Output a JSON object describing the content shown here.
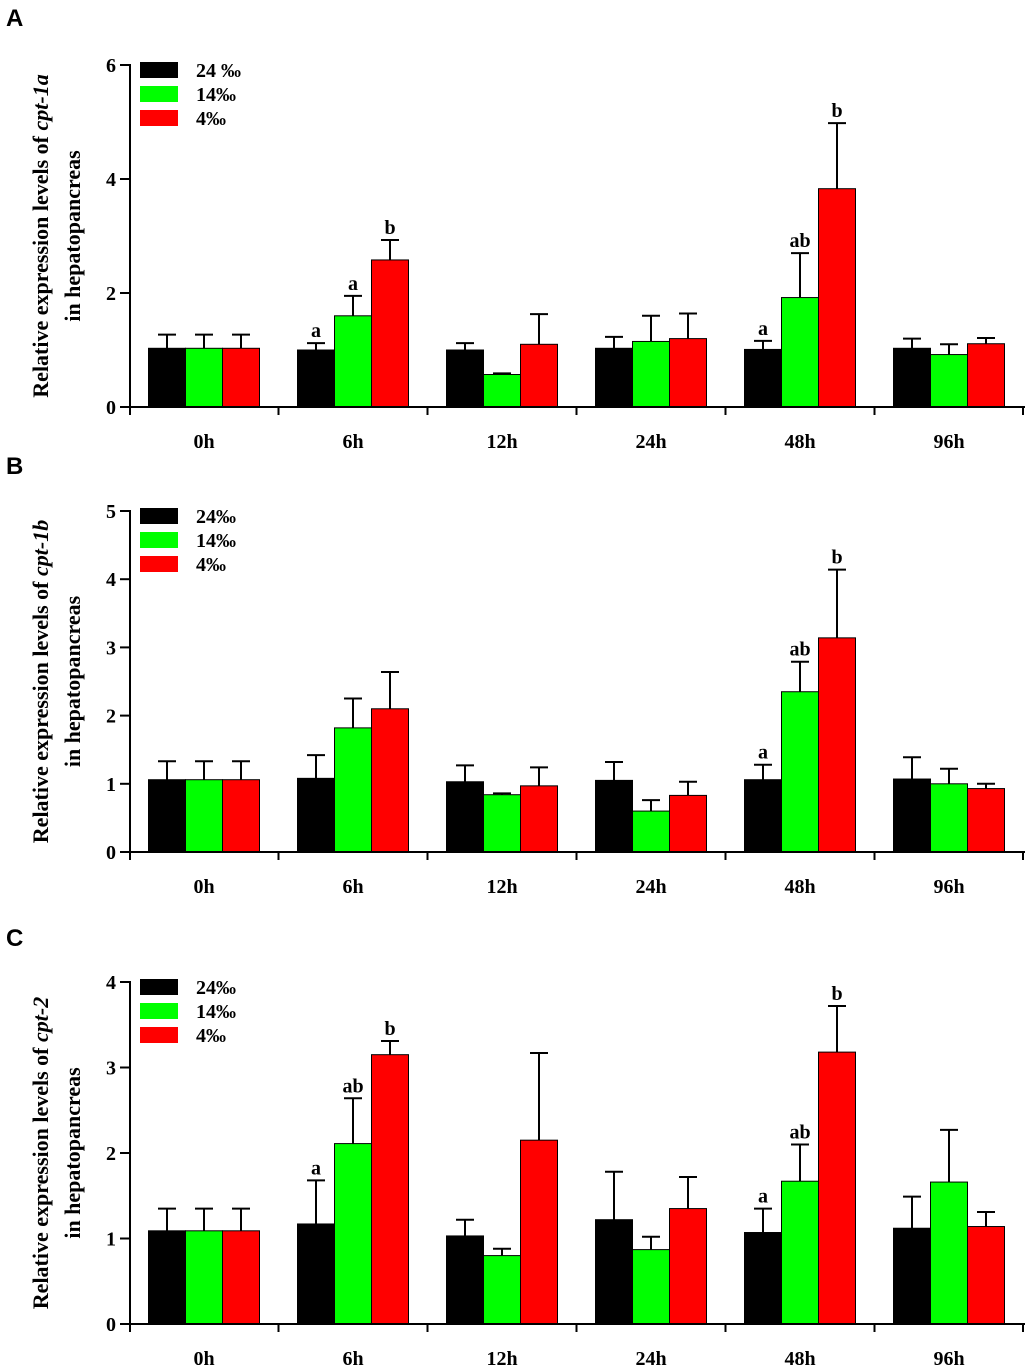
{
  "chart_data": [
    {
      "panel": "A",
      "type": "bar",
      "ylabel_line1_prefix": "Relative expression levels of ",
      "gene": "cpt-1a",
      "ylabel_line2": "in hepatopancreas",
      "ylim": [
        0,
        6
      ],
      "yticks": [
        "0",
        "2",
        "4",
        "6"
      ],
      "categories": [
        "0h",
        "6h",
        "12h",
        "24h",
        "48h",
        "96h"
      ],
      "series": [
        {
          "name": "24 ‰",
          "color": "#000000",
          "values": [
            1.03,
            1.0,
            1.0,
            1.03,
            1.01,
            1.03
          ],
          "errors": [
            0.24,
            0.12,
            0.12,
            0.2,
            0.15,
            0.17
          ],
          "labels": [
            "",
            "a",
            "",
            "",
            "a",
            ""
          ]
        },
        {
          "name": "14‰",
          "color": "#00ff00",
          "values": [
            1.03,
            1.6,
            0.57,
            1.15,
            1.92,
            0.92
          ],
          "errors": [
            0.24,
            0.35,
            0.02,
            0.45,
            0.78,
            0.18
          ],
          "labels": [
            "",
            "a",
            "",
            "",
            "ab",
            ""
          ]
        },
        {
          "name": "4‰",
          "color": "#ff0000",
          "values": [
            1.03,
            2.58,
            1.1,
            1.2,
            3.83,
            1.11
          ],
          "errors": [
            0.24,
            0.35,
            0.53,
            0.44,
            1.15,
            0.1
          ],
          "labels": [
            "",
            "b",
            "",
            "",
            "b",
            ""
          ]
        }
      ]
    },
    {
      "panel": "B",
      "type": "bar",
      "ylabel_line1_prefix": "Relative expression levels of ",
      "gene": "cpt-1b",
      "ylabel_line2": "in hepatopancreas",
      "ylim": [
        0,
        5
      ],
      "yticks": [
        "0",
        "1",
        "2",
        "3",
        "4",
        "5"
      ],
      "categories": [
        "0h",
        "6h",
        "12h",
        "24h",
        "48h",
        "96h"
      ],
      "series": [
        {
          "name": "24‰",
          "color": "#000000",
          "values": [
            1.06,
            1.08,
            1.03,
            1.05,
            1.06,
            1.07
          ],
          "errors": [
            0.27,
            0.34,
            0.24,
            0.27,
            0.22,
            0.32
          ],
          "labels": [
            "",
            "",
            "",
            "",
            "a",
            ""
          ]
        },
        {
          "name": "14‰",
          "color": "#00ff00",
          "values": [
            1.06,
            1.82,
            0.84,
            0.6,
            2.35,
            1.0
          ],
          "errors": [
            0.27,
            0.43,
            0.02,
            0.16,
            0.44,
            0.22
          ],
          "labels": [
            "",
            "",
            "",
            "",
            "ab",
            ""
          ]
        },
        {
          "name": "4‰",
          "color": "#ff0000",
          "values": [
            1.06,
            2.1,
            0.97,
            0.83,
            3.14,
            0.93
          ],
          "errors": [
            0.27,
            0.54,
            0.27,
            0.2,
            1.0,
            0.07
          ],
          "labels": [
            "",
            "",
            "",
            "",
            "b",
            ""
          ]
        }
      ]
    },
    {
      "panel": "C",
      "type": "bar",
      "ylabel_line1_prefix": "Relative expression levels of ",
      "gene": "cpt-2",
      "ylabel_line2": "in hepatopancreas",
      "ylim": [
        0,
        4
      ],
      "yticks": [
        "0",
        "1",
        "2",
        "3",
        "4"
      ],
      "categories": [
        "0h",
        "6h",
        "12h",
        "24h",
        "48h",
        "96h"
      ],
      "series": [
        {
          "name": "24‰",
          "color": "#000000",
          "values": [
            1.09,
            1.17,
            1.03,
            1.22,
            1.07,
            1.12
          ],
          "errors": [
            0.26,
            0.51,
            0.19,
            0.56,
            0.28,
            0.37
          ],
          "labels": [
            "",
            "a",
            "",
            "",
            "a",
            ""
          ]
        },
        {
          "name": "14‰",
          "color": "#00ff00",
          "values": [
            1.09,
            2.11,
            0.8,
            0.87,
            1.67,
            1.66
          ],
          "errors": [
            0.26,
            0.53,
            0.08,
            0.15,
            0.43,
            0.61
          ],
          "labels": [
            "",
            "ab",
            "",
            "",
            "ab",
            ""
          ]
        },
        {
          "name": "4‰",
          "color": "#ff0000",
          "values": [
            1.09,
            3.15,
            2.15,
            1.35,
            3.18,
            1.14
          ],
          "errors": [
            0.26,
            0.16,
            1.02,
            0.37,
            0.54,
            0.17
          ],
          "labels": [
            "",
            "b",
            "",
            "",
            "b",
            ""
          ]
        }
      ]
    }
  ]
}
